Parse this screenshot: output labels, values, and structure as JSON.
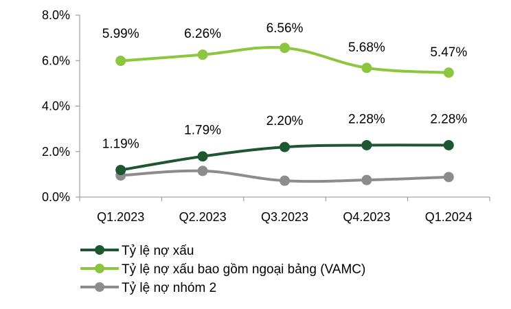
{
  "chart_data": {
    "type": "line",
    "title": "",
    "xlabel": "",
    "ylabel": "",
    "categories": [
      "Q1.2023",
      "Q2.2023",
      "Q3.2023",
      "Q4.2023",
      "Q1.2024"
    ],
    "ylim": [
      0,
      8
    ],
    "yticks": [
      "0.0%",
      "2.0%",
      "4.0%",
      "6.0%",
      "8.0%"
    ],
    "grid": false,
    "legend": "bottom-left",
    "series": [
      {
        "name": "Tỷ lệ nợ xấu",
        "values": [
          1.19,
          1.79,
          2.2,
          2.28,
          2.28
        ],
        "labels": [
          "1.19%",
          "1.79%",
          "2.20%",
          "2.28%",
          "2.28%"
        ],
        "color": "#1e5631"
      },
      {
        "name": "Tỷ lệ nợ xấu bao gồm ngoại bảng (VAMC)",
        "values": [
          5.99,
          6.26,
          6.56,
          5.68,
          5.47
        ],
        "labels": [
          "5.99%",
          "6.26%",
          "6.56%",
          "5.68%",
          "5.47%"
        ],
        "color": "#8cc63f"
      },
      {
        "name": "Tỷ lệ nợ nhóm 2",
        "values": [
          0.95,
          1.15,
          0.72,
          0.75,
          0.88
        ],
        "labels": [],
        "color": "#8c8c8c"
      }
    ]
  }
}
